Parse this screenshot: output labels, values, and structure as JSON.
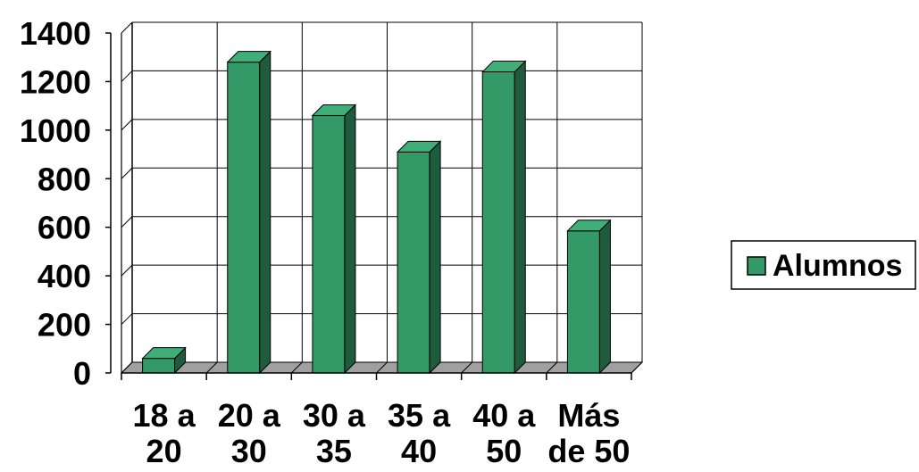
{
  "chart_data": {
    "type": "bar",
    "categories": [
      "18 a 20",
      "20 a 30",
      "30 a 35",
      "35 a 40",
      "40 a 50",
      "Más de 50"
    ],
    "category_label_lines": [
      [
        "18 a",
        "20"
      ],
      [
        "20 a",
        "30"
      ],
      [
        "30 a",
        "35"
      ],
      [
        "35 a",
        "40"
      ],
      [
        "40 a",
        "50"
      ],
      [
        "Más",
        "de 50"
      ]
    ],
    "series": [
      {
        "name": "Alumnos",
        "values": [
          60,
          1280,
          1060,
          910,
          1240,
          585
        ]
      }
    ],
    "ylim": [
      0,
      1400
    ],
    "yticks": [
      0,
      200,
      400,
      600,
      800,
      1000,
      1200,
      1400
    ],
    "grid": true,
    "three_d": true,
    "legend_position": "right",
    "colors": {
      "bar_front": "#339966",
      "bar_side": "#1f5c3d",
      "bar_top": "#3fae78",
      "floor": "#a0a0a0",
      "grid": "#000000"
    }
  }
}
